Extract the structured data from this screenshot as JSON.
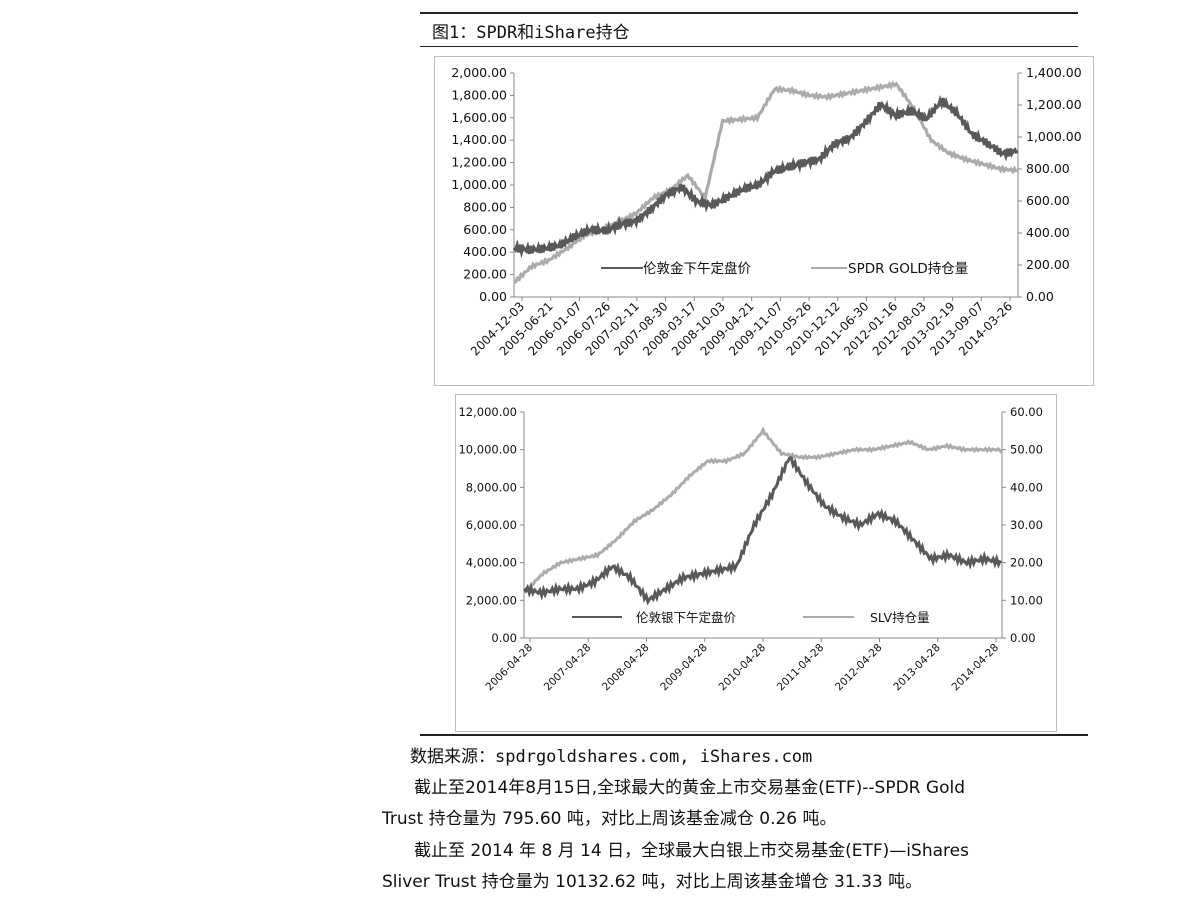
{
  "figure": {
    "title": "图1：SPDR和iShare持仓"
  },
  "chart_data": [
    {
      "type": "line",
      "x_ticks": [
        "2004-12-03",
        "2005-06-21",
        "2006-01-07",
        "2006-07-26",
        "2007-02-11",
        "2007-08-30",
        "2008-03-17",
        "2008-10-03",
        "2009-04-21",
        "2009-11-07",
        "2010-05-26",
        "2010-12-12",
        "2011-06-30",
        "2012-01-16",
        "2012-08-03",
        "2013-02-19",
        "2013-09-07",
        "2014-03-26"
      ],
      "y_left": {
        "min": 0,
        "max": 2000,
        "ticks": [
          "0.00",
          "200.00",
          "400.00",
          "600.00",
          "800.00",
          "1,000.00",
          "1,200.00",
          "1,400.00",
          "1,600.00",
          "1,800.00",
          "2,000.00"
        ]
      },
      "y_right": {
        "min": 0,
        "max": 1400,
        "ticks": [
          "0.00",
          "200.00",
          "400.00",
          "600.00",
          "800.00",
          "1,000.00",
          "1,200.00",
          "1,400.00"
        ]
      },
      "series": [
        {
          "name": "伦敦金下午定盘价",
          "axis": "left",
          "color": "#595959",
          "values": [
            440,
            420,
            430,
            460,
            540,
            600,
            590,
            650,
            680,
            790,
            920,
            980,
            850,
            820,
            890,
            960,
            1000,
            1120,
            1160,
            1200,
            1230,
            1370,
            1420,
            1560,
            1720,
            1620,
            1660,
            1590,
            1750,
            1640,
            1450,
            1370,
            1280,
            1310
          ]
        },
        {
          "name": "SPDR GOLD持仓量",
          "axis": "right",
          "color": "#ababab",
          "values": [
            90,
            190,
            230,
            300,
            380,
            420,
            470,
            520,
            620,
            670,
            760,
            620,
            1100,
            1110,
            1120,
            1300,
            1290,
            1260,
            1250,
            1270,
            1290,
            1310,
            1330,
            1180,
            980,
            900,
            860,
            830,
            800,
            790
          ]
        }
      ]
    },
    {
      "type": "line",
      "x_ticks": [
        "2006-04-28",
        "2007-04-28",
        "2008-04-28",
        "2009-04-28",
        "2010-04-28",
        "2011-04-28",
        "2012-04-28",
        "2013-04-28",
        "2014-04-28"
      ],
      "y_left": {
        "min": 0,
        "max": 12000,
        "ticks": [
          "0.00",
          "2,000.00",
          "4,000.00",
          "6,000.00",
          "8,000.00",
          "10,000.00",
          "12,000.00"
        ]
      },
      "y_right": {
        "min": 0,
        "max": 60,
        "ticks": [
          "0.00",
          "10.00",
          "20.00",
          "30.00",
          "40.00",
          "50.00",
          "60.00"
        ]
      },
      "series": [
        {
          "name": "伦敦银下午定盘价",
          "axis": "left",
          "color": "#595959",
          "values": [
            2600,
            2400,
            2600,
            2600,
            3000,
            3800,
            3200,
            2000,
            2600,
            3200,
            3400,
            3600,
            3800,
            6000,
            7600,
            9600,
            8200,
            7000,
            6400,
            6000,
            6600,
            6200,
            5200,
            4200,
            4400,
            4000,
            4200,
            4000
          ]
        },
        {
          "name": "SLV持仓量",
          "axis": "right",
          "color": "#ababab",
          "values": [
            12,
            17,
            20,
            21,
            22,
            26,
            31,
            34,
            38,
            43,
            47,
            47,
            49,
            55,
            49,
            48,
            48,
            49,
            50,
            50,
            51,
            52,
            50,
            51,
            50,
            50,
            50
          ]
        }
      ]
    }
  ],
  "source": "数据来源：spdrgoldshares.com, iShares.com",
  "paragraphs": [
    {
      "line1": "截止至2014年8月15日,全球最大的黄金上市交易基金(ETF)--SPDR Gold",
      "line2": "Trust 持仓量为 795.60 吨，对比上周该基金减仓 0.26 吨。"
    },
    {
      "line1": "截止至 2014 年 8 月 14 日，全球最大白银上市交易基金(ETF)—iShares",
      "line2": "Sliver Trust 持仓量为 10132.62 吨，对比上周该基金增仓 31.33 吨。"
    }
  ]
}
